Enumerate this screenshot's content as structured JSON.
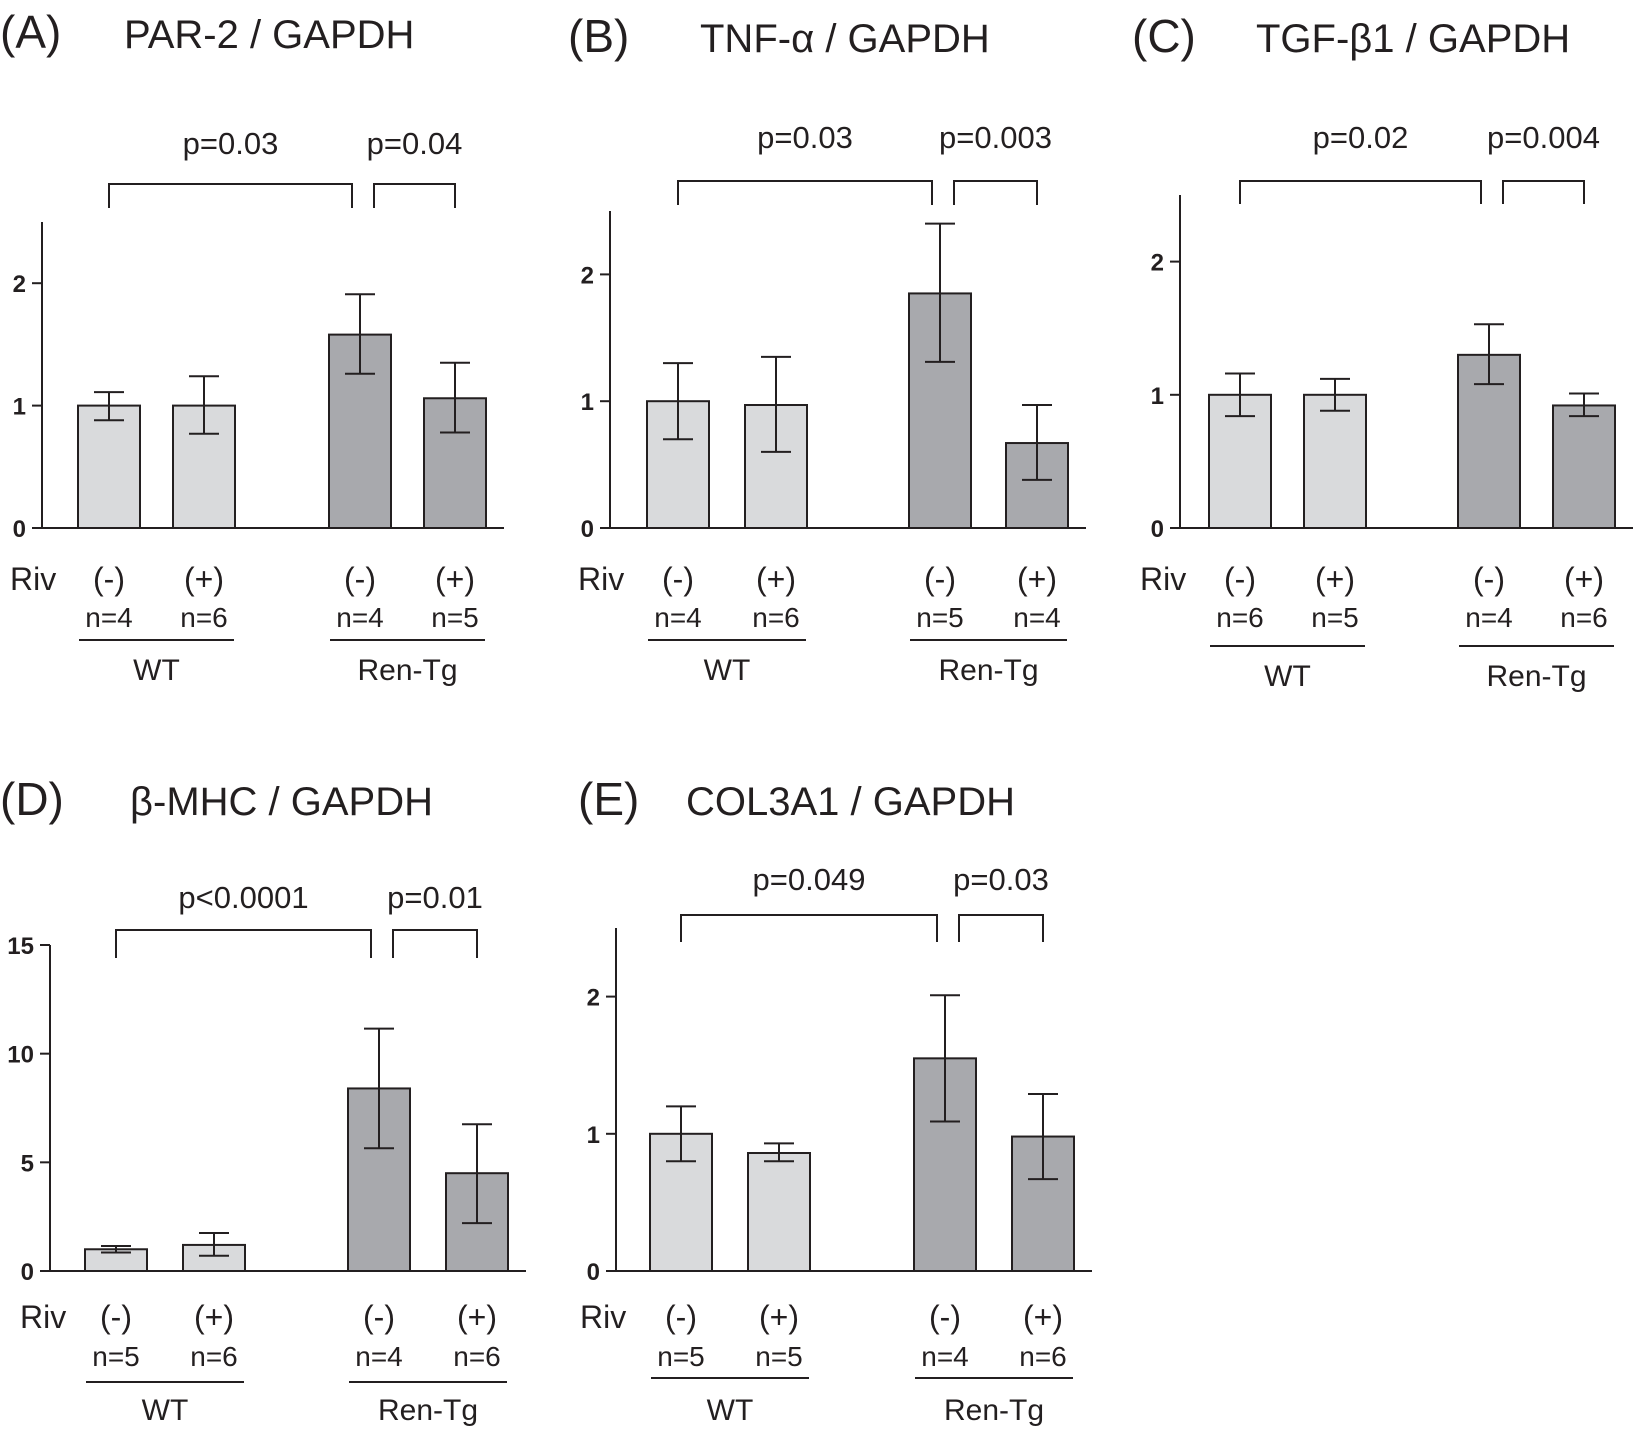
{
  "figure": {
    "colors": {
      "wt_bar": "#d9dadc",
      "rentg_bar": "#a8a9ad",
      "ink": "#231f20"
    }
  },
  "chart_data": [
    {
      "type": "bar",
      "panel": "(A)",
      "title": "PAR-2 / GAPDH",
      "row_label": "Riv",
      "categories": [
        "(-)",
        "(+)",
        "(-)",
        "(+)"
      ],
      "groups": [
        {
          "name": "WT",
          "members": [
            0,
            1
          ]
        },
        {
          "name": "Ren-Tg",
          "members": [
            2,
            3
          ]
        }
      ],
      "n_labels": [
        "n=4",
        "n=6",
        "n=4",
        "n=5"
      ],
      "values": [
        1.0,
        1.0,
        1.58,
        1.06
      ],
      "err_low": [
        0.88,
        0.77,
        1.26,
        0.78
      ],
      "err_high": [
        1.11,
        1.24,
        1.91,
        1.35
      ],
      "ylim": [
        0,
        2.5
      ],
      "yticks": [
        0,
        1,
        2
      ],
      "brackets": [
        {
          "from": 0,
          "to": 2,
          "label": "p=0.03"
        },
        {
          "from": 2,
          "to": 3,
          "label": "p=0.04"
        }
      ]
    },
    {
      "type": "bar",
      "panel": "(B)",
      "title": "TNF-α / GAPDH",
      "row_label": "Riv",
      "categories": [
        "(-)",
        "(+)",
        "(-)",
        "(+)"
      ],
      "groups": [
        {
          "name": "WT",
          "members": [
            0,
            1
          ]
        },
        {
          "name": "Ren-Tg",
          "members": [
            2,
            3
          ]
        }
      ],
      "n_labels": [
        "n=4",
        "n=6",
        "n=5",
        "n=4"
      ],
      "values": [
        1.0,
        0.97,
        1.85,
        0.67
      ],
      "err_low": [
        0.7,
        0.6,
        1.31,
        0.38
      ],
      "err_high": [
        1.3,
        1.35,
        2.4,
        0.97
      ],
      "ylim": [
        0,
        2.5
      ],
      "yticks": [
        0,
        1,
        2
      ],
      "brackets": [
        {
          "from": 0,
          "to": 2,
          "label": "p=0.03"
        },
        {
          "from": 2,
          "to": 3,
          "label": "p=0.003"
        }
      ]
    },
    {
      "type": "bar",
      "panel": "(C)",
      "title": "TGF-β1 / GAPDH",
      "row_label": "Riv",
      "categories": [
        "(-)",
        "(+)",
        "(-)",
        "(+)"
      ],
      "groups": [
        {
          "name": "WT",
          "members": [
            0,
            1
          ]
        },
        {
          "name": "Ren-Tg",
          "members": [
            2,
            3
          ]
        }
      ],
      "n_labels": [
        "n=6",
        "n=5",
        "n=4",
        "n=6"
      ],
      "values": [
        1.0,
        1.0,
        1.3,
        0.92
      ],
      "err_low": [
        0.84,
        0.88,
        1.08,
        0.84
      ],
      "err_high": [
        1.16,
        1.12,
        1.53,
        1.01
      ],
      "ylim": [
        0,
        2.5
      ],
      "yticks": [
        0,
        1,
        2
      ],
      "brackets": [
        {
          "from": 0,
          "to": 2,
          "label": "p=0.02"
        },
        {
          "from": 2,
          "to": 3,
          "label": "p=0.004"
        }
      ]
    },
    {
      "type": "bar",
      "panel": "(D)",
      "title": "β-MHC / GAPDH",
      "row_label": "Riv",
      "categories": [
        "(-)",
        "(+)",
        "(-)",
        "(+)"
      ],
      "groups": [
        {
          "name": "WT",
          "members": [
            0,
            1
          ]
        },
        {
          "name": "Ren-Tg",
          "members": [
            2,
            3
          ]
        }
      ],
      "n_labels": [
        "n=5",
        "n=6",
        "n=4",
        "n=6"
      ],
      "values": [
        1.0,
        1.2,
        8.4,
        4.5
      ],
      "err_low": [
        0.85,
        0.7,
        5.65,
        2.2
      ],
      "err_high": [
        1.15,
        1.75,
        11.15,
        6.75
      ],
      "ylim": [
        0,
        15
      ],
      "yticks": [
        0,
        5,
        10,
        15
      ],
      "brackets": [
        {
          "from": 0,
          "to": 2,
          "label": "p<0.0001"
        },
        {
          "from": 2,
          "to": 3,
          "label": "p=0.01"
        }
      ]
    },
    {
      "type": "bar",
      "panel": "(E)",
      "title": "COL3A1 / GAPDH",
      "row_label": "Riv",
      "categories": [
        "(-)",
        "(+)",
        "(-)",
        "(+)"
      ],
      "groups": [
        {
          "name": "WT",
          "members": [
            0,
            1
          ]
        },
        {
          "name": "Ren-Tg",
          "members": [
            2,
            3
          ]
        }
      ],
      "n_labels": [
        "n=5",
        "n=5",
        "n=4",
        "n=6"
      ],
      "values": [
        1.0,
        0.86,
        1.55,
        0.98
      ],
      "err_low": [
        0.8,
        0.8,
        1.09,
        0.67
      ],
      "err_high": [
        1.2,
        0.93,
        2.01,
        1.29
      ],
      "ylim": [
        0,
        2.5
      ],
      "yticks": [
        0,
        1,
        2
      ],
      "brackets": [
        {
          "from": 0,
          "to": 2,
          "label": "p=0.049"
        },
        {
          "from": 2,
          "to": 3,
          "label": "p=0.03"
        }
      ]
    }
  ]
}
